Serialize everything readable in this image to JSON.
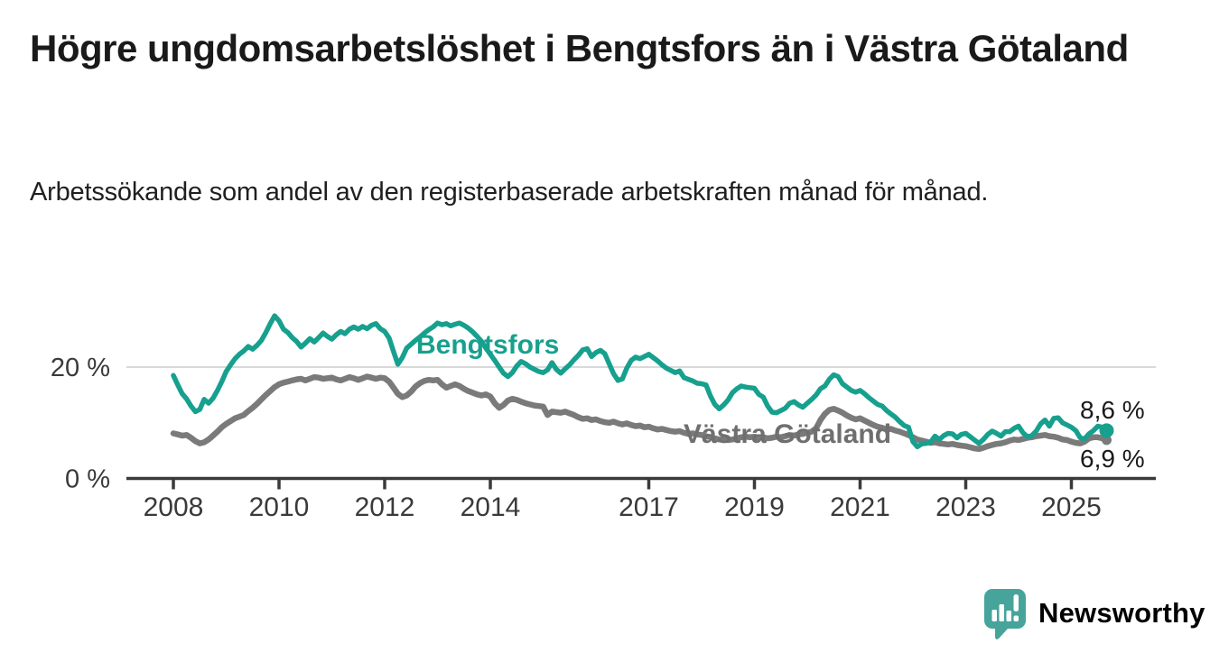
{
  "header": {
    "title": "Högre ungdomsarbetslöshet i Bengtsfors än i Västra Götaland",
    "subtitle": "Arbetssökande som andel av den registerbaserade arbetskraften månad för månad."
  },
  "footer": {
    "brand": "Newsworthy"
  },
  "colors": {
    "bengtsfors": "#17a08e",
    "vastra_gotaland": "#7a7a7a",
    "vastra_gotaland_label": "#6f6f6f",
    "axis": "#3a3a3a",
    "grid": "#d9d9d9",
    "value_text": "#1a1a1a",
    "brand_teal": "#46a49b"
  },
  "chart_data": {
    "type": "line",
    "title": "Högre ungdomsarbetslöshet i Bengtsfors än i Västra Götaland",
    "subtitle": "Arbetssökande som andel av den registerbaserade arbetskraften månad för månad.",
    "unit": "%",
    "frequency": "monthly",
    "start": "2008-01",
    "end": "2025-09",
    "ylim": [
      0,
      31
    ],
    "grid": "y-only-at-20",
    "legend": "inline-labels",
    "yticks": [
      {
        "value": 0,
        "label": "0 %"
      },
      {
        "value": 20,
        "label": "20 %"
      }
    ],
    "xticks": [
      {
        "year": 2008,
        "label": "2008"
      },
      {
        "year": 2010,
        "label": "2010"
      },
      {
        "year": 2012,
        "label": "2012"
      },
      {
        "year": 2014,
        "label": "2014"
      },
      {
        "year": 2017,
        "label": "2017"
      },
      {
        "year": 2019,
        "label": "2019"
      },
      {
        "year": 2021,
        "label": "2021"
      },
      {
        "year": 2023,
        "label": "2023"
      },
      {
        "year": 2025,
        "label": "2025"
      }
    ],
    "series": [
      {
        "name": "Bengtsfors",
        "color": "#17a08e",
        "label_color": "#17a08e",
        "end_label": "8,6 %",
        "last_value": 8.6,
        "values": [
          18.5,
          16.8,
          15.2,
          14.3,
          13.0,
          12.0,
          12.4,
          14.2,
          13.5,
          14.4,
          15.8,
          17.4,
          19.2,
          20.4,
          21.5,
          22.3,
          22.9,
          23.7,
          23.2,
          23.9,
          24.8,
          26.2,
          27.8,
          29.2,
          28.3,
          26.8,
          26.2,
          25.3,
          24.6,
          23.6,
          24.3,
          25.1,
          24.5,
          25.3,
          26.1,
          25.5,
          25.0,
          25.8,
          26.4,
          26.0,
          26.8,
          27.2,
          26.8,
          27.3,
          26.9,
          27.5,
          27.8,
          26.9,
          26.4,
          25.2,
          22.8,
          20.5,
          21.7,
          23.4,
          24.1,
          24.8,
          25.4,
          26.1,
          26.7,
          27.2,
          27.9,
          27.6,
          27.8,
          27.4,
          27.7,
          27.9,
          27.5,
          27.0,
          26.3,
          25.5,
          24.6,
          23.4,
          22.3,
          21.2,
          20.0,
          18.9,
          18.3,
          19.0,
          20.2,
          21.0,
          20.6,
          20.0,
          19.6,
          19.2,
          19.0,
          19.5,
          20.8,
          19.6,
          18.9,
          19.7,
          20.4,
          21.3,
          22.1,
          23.1,
          23.3,
          21.9,
          22.6,
          23.0,
          22.4,
          20.6,
          18.8,
          17.6,
          17.9,
          19.8,
          21.2,
          21.8,
          21.5,
          21.9,
          22.3,
          21.7,
          21.1,
          20.4,
          19.8,
          19.4,
          19.0,
          19.3,
          18.1,
          17.8,
          17.5,
          17.1,
          17.0,
          16.8,
          14.8,
          13.3,
          12.5,
          13.2,
          14.1,
          15.4,
          16.1,
          16.6,
          16.4,
          16.3,
          16.2,
          15.1,
          14.6,
          13.0,
          11.9,
          11.8,
          12.2,
          12.6,
          13.5,
          13.8,
          13.2,
          12.8,
          13.5,
          14.2,
          15.0,
          16.1,
          16.6,
          17.8,
          18.6,
          18.3,
          17.0,
          16.4,
          15.8,
          15.5,
          15.8,
          15.2,
          14.5,
          13.9,
          13.3,
          13.0,
          12.2,
          11.6,
          11.0,
          10.2,
          9.5,
          9.2,
          6.6,
          5.7,
          6.2,
          6.3,
          6.5,
          7.6,
          7.0,
          7.7,
          8.1,
          8.0,
          7.3,
          7.9,
          8.1,
          7.5,
          6.9,
          6.3,
          7.0,
          7.9,
          8.5,
          8.1,
          7.6,
          8.4,
          8.4,
          9.0,
          9.4,
          8.2,
          7.5,
          7.7,
          8.5,
          9.8,
          10.5,
          9.4,
          10.8,
          10.9,
          10.0,
          9.6,
          9.2,
          8.6,
          7.3,
          7.1,
          8.0,
          8.6,
          9.4,
          9.2,
          8.6
        ]
      },
      {
        "name": "Västra Götaland",
        "color": "#7a7a7a",
        "label_color": "#6f6f6f",
        "end_label": "6,9 %",
        "last_value": 6.9,
        "values": [
          8.1,
          7.9,
          7.7,
          7.8,
          7.3,
          6.7,
          6.3,
          6.5,
          7.0,
          7.7,
          8.4,
          9.2,
          9.8,
          10.3,
          10.8,
          11.1,
          11.4,
          12.1,
          12.7,
          13.4,
          14.2,
          15.0,
          15.7,
          16.4,
          16.9,
          17.2,
          17.4,
          17.6,
          17.8,
          17.9,
          17.6,
          17.9,
          18.2,
          18.1,
          17.9,
          18.0,
          18.1,
          17.8,
          17.6,
          17.9,
          18.2,
          18.0,
          17.7,
          18.0,
          18.3,
          18.1,
          17.9,
          18.1,
          18.0,
          17.4,
          16.3,
          15.2,
          14.6,
          14.9,
          15.6,
          16.5,
          17.1,
          17.5,
          17.7,
          17.6,
          17.7,
          16.9,
          16.3,
          16.6,
          16.9,
          16.6,
          16.1,
          15.7,
          15.4,
          15.1,
          14.9,
          15.1,
          14.7,
          13.5,
          12.7,
          13.2,
          14.0,
          14.3,
          14.1,
          13.8,
          13.5,
          13.3,
          13.1,
          13.0,
          12.9,
          11.4,
          12.0,
          11.9,
          11.8,
          12.0,
          11.7,
          11.4,
          11.0,
          10.7,
          10.8,
          10.5,
          10.6,
          10.3,
          10.1,
          10.0,
          10.2,
          9.9,
          9.7,
          9.9,
          9.6,
          9.4,
          9.5,
          9.2,
          9.3,
          9.0,
          8.8,
          8.9,
          8.7,
          8.5,
          8.4,
          8.5,
          8.2,
          8.0,
          8.1,
          7.9,
          7.8,
          7.6,
          7.4,
          7.2,
          7.0,
          7.1,
          6.9,
          7.0,
          7.2,
          7.4,
          7.5,
          7.4,
          7.5,
          7.3,
          7.4,
          7.2,
          7.3,
          7.5,
          7.4,
          7.6,
          7.8,
          7.7,
          7.9,
          8.0,
          8.2,
          8.4,
          9.0,
          10.5,
          11.6,
          12.3,
          12.5,
          12.2,
          11.8,
          11.3,
          10.9,
          10.6,
          10.8,
          10.4,
          10.0,
          9.6,
          9.3,
          9.1,
          8.8,
          8.9,
          8.6,
          8.4,
          8.1,
          7.8,
          7.4,
          7.0,
          6.8,
          6.6,
          6.4,
          6.5,
          6.3,
          6.2,
          6.1,
          6.2,
          6.0,
          5.9,
          5.8,
          5.6,
          5.4,
          5.3,
          5.5,
          5.8,
          6.0,
          6.2,
          6.3,
          6.5,
          6.8,
          7.0,
          6.9,
          7.1,
          7.3,
          7.4,
          7.6,
          7.7,
          7.8,
          7.6,
          7.5,
          7.3,
          7.0,
          6.9,
          6.6,
          6.4,
          6.3,
          6.6,
          7.2,
          7.4,
          7.4,
          7.2,
          6.9
        ]
      }
    ]
  }
}
